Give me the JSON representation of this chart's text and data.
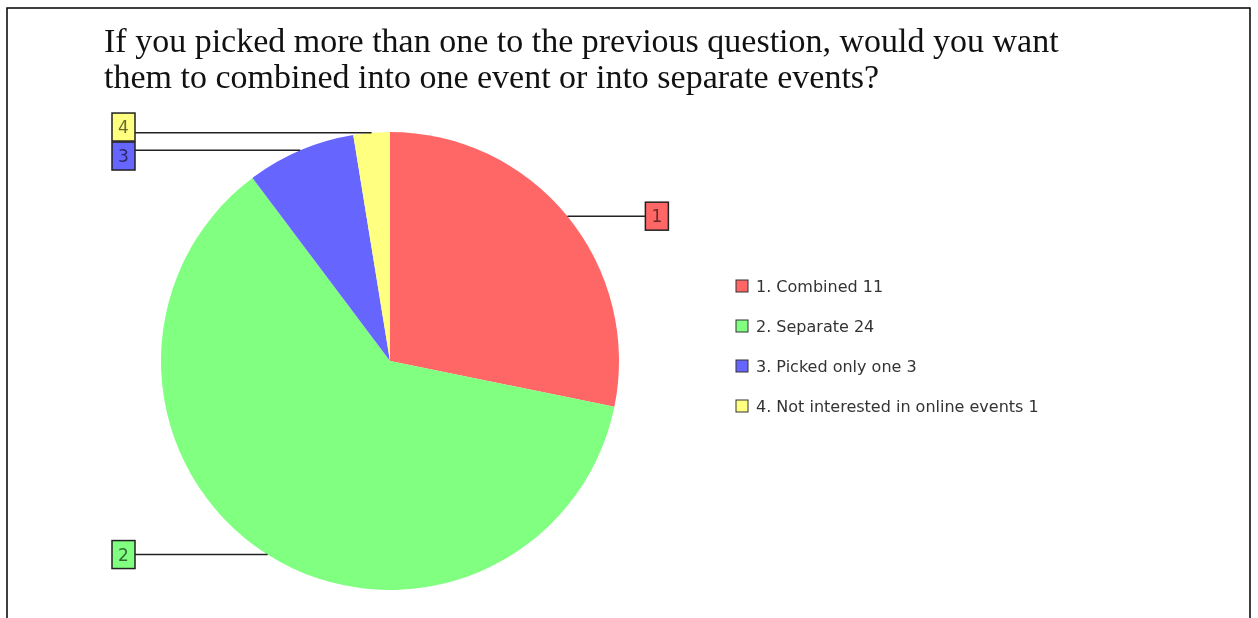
{
  "chart_data": {
    "type": "pie",
    "title": "If you picked more than one to the previous question, would you want them to combined into one event or into separate events?",
    "categories": [
      "1. Combined 11",
      "2. Separate 24",
      "3. Picked only one 3",
      "4. Not interested in online events 1"
    ],
    "values": [
      11,
      24,
      3,
      1
    ],
    "colors": [
      "#ff6666",
      "#80ff80",
      "#6666ff",
      "#ffff80"
    ],
    "annotations": [
      "1",
      "2",
      "3",
      "4"
    ],
    "legend": "right"
  }
}
